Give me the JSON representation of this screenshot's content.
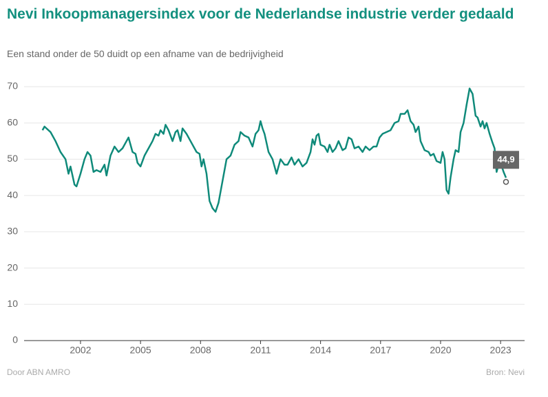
{
  "chart_data": {
    "type": "line",
    "title": "Nevi Inkoopmanagersindex voor de Nederlandse industrie verder gedaald",
    "subtitle": "Een stand onder de 50 duidt op een afname van de bedrijvigheid",
    "source_left": "Door ABN AMRO",
    "source_right": "Bron: Nevi",
    "annotation": {
      "label": "44,9"
    },
    "x": [
      2000.1,
      2000.2,
      2000.5,
      2000.75,
      2001,
      2001.25,
      2001.4,
      2001.5,
      2001.7,
      2001.8,
      2002,
      2002.2,
      2002.35,
      2002.5,
      2002.65,
      2002.8,
      2003,
      2003.2,
      2003.3,
      2003.5,
      2003.7,
      2003.9,
      2004.1,
      2004.3,
      2004.4,
      2004.6,
      2004.75,
      2004.85,
      2005,
      2005.2,
      2005.4,
      2005.6,
      2005.75,
      2005.9,
      2006,
      2006.15,
      2006.25,
      2006.4,
      2006.6,
      2006.75,
      2006.85,
      2007,
      2007.1,
      2007.3,
      2007.5,
      2007.7,
      2007.8,
      2007.95,
      2008.05,
      2008.15,
      2008.3,
      2008.45,
      2008.6,
      2008.75,
      2008.9,
      2009.1,
      2009.3,
      2009.5,
      2009.7,
      2009.9,
      2010,
      2010.2,
      2010.4,
      2010.6,
      2010.75,
      2010.9,
      2011,
      2011.1,
      2011.2,
      2011.4,
      2011.6,
      2011.8,
      2012,
      2012.2,
      2012.35,
      2012.55,
      2012.7,
      2012.9,
      2013.1,
      2013.3,
      2013.5,
      2013.6,
      2013.7,
      2013.8,
      2013.9,
      2014,
      2014.2,
      2014.35,
      2014.45,
      2014.6,
      2014.75,
      2014.9,
      2015.1,
      2015.25,
      2015.4,
      2015.55,
      2015.7,
      2015.9,
      2016.1,
      2016.25,
      2016.45,
      2016.65,
      2016.8,
      2016.95,
      2017.1,
      2017.3,
      2017.5,
      2017.7,
      2017.9,
      2018,
      2018.2,
      2018.35,
      2018.5,
      2018.65,
      2018.75,
      2018.9,
      2019,
      2019.2,
      2019.4,
      2019.5,
      2019.65,
      2019.8,
      2020,
      2020.1,
      2020.2,
      2020.3,
      2020.4,
      2020.5,
      2020.65,
      2020.75,
      2020.9,
      2021,
      2021.15,
      2021.3,
      2021.45,
      2021.6,
      2021.75,
      2021.85,
      2022,
      2022.1,
      2022.2,
      2022.3,
      2022.45,
      2022.6,
      2022.7,
      2022.8,
      2022.9,
      2023,
      2023.15,
      2023.27
    ],
    "series": [
      {
        "color": "#0f8a7a",
        "values": [
          58,
          59,
          57.5,
          55,
          52,
          50,
          46,
          48,
          43,
          42.5,
          46,
          50,
          52,
          51,
          46.5,
          47,
          46.5,
          48.5,
          45.5,
          51,
          53.5,
          52,
          53,
          55,
          56,
          52,
          51.5,
          49,
          48,
          51,
          53,
          55,
          57,
          56.5,
          58,
          57,
          59.5,
          58,
          55,
          57.5,
          58,
          55,
          58.5,
          57,
          55,
          53,
          52,
          51.5,
          48,
          50,
          46,
          38.5,
          36.5,
          35.5,
          38,
          44,
          50,
          51,
          54,
          55,
          57.5,
          56.5,
          56,
          53.5,
          57,
          58,
          60.5,
          58.5,
          57,
          52,
          50,
          46,
          50,
          48.5,
          48.5,
          50.5,
          48.5,
          50,
          48,
          49,
          52,
          55.5,
          54,
          56.5,
          57,
          54,
          53.5,
          52,
          54,
          52,
          53,
          55,
          52.5,
          53,
          56,
          55.5,
          53,
          53.5,
          52,
          53.5,
          52.5,
          53.5,
          53.5,
          56,
          57,
          57.5,
          58,
          60,
          60.5,
          62.5,
          62.5,
          63.5,
          60.5,
          59.5,
          57.5,
          59,
          55,
          52.5,
          52,
          51,
          51.5,
          49.5,
          49,
          52,
          50,
          41.5,
          40.5,
          45,
          50,
          52.5,
          52,
          57.5,
          60,
          65,
          69.5,
          68,
          62,
          61.5,
          59,
          60.5,
          58.5,
          60,
          57,
          54.5,
          53,
          46.5,
          48.5,
          49,
          46.5,
          44.9
        ]
      }
    ],
    "xlim": [
      1999.18,
      2024.2
    ],
    "xticks": [
      2002,
      2005,
      2008,
      2011,
      2014,
      2017,
      2020,
      2023
    ],
    "ylim": [
      0,
      70
    ],
    "yticks": [
      0,
      10,
      20,
      30,
      40,
      50,
      60,
      70
    ],
    "grid": true
  }
}
